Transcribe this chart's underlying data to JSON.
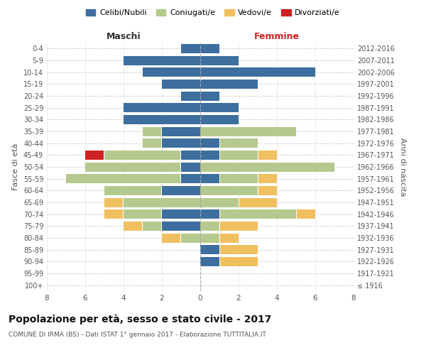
{
  "age_groups": [
    "100+",
    "95-99",
    "90-94",
    "85-89",
    "80-84",
    "75-79",
    "70-74",
    "65-69",
    "60-64",
    "55-59",
    "50-54",
    "45-49",
    "40-44",
    "35-39",
    "30-34",
    "25-29",
    "20-24",
    "15-19",
    "10-14",
    "5-9",
    "0-4"
  ],
  "birth_years": [
    "≤ 1916",
    "1917-1921",
    "1922-1926",
    "1927-1931",
    "1932-1936",
    "1937-1941",
    "1942-1946",
    "1947-1951",
    "1952-1956",
    "1957-1961",
    "1962-1966",
    "1967-1971",
    "1972-1976",
    "1977-1981",
    "1982-1986",
    "1987-1991",
    "1992-1996",
    "1997-2001",
    "2002-2006",
    "2007-2011",
    "2012-2016"
  ],
  "maschi": {
    "celibi": [
      0,
      0,
      0,
      0,
      0,
      2,
      2,
      0,
      2,
      1,
      1,
      1,
      2,
      2,
      4,
      4,
      1,
      2,
      3,
      4,
      1
    ],
    "coniugati": [
      0,
      0,
      0,
      0,
      1,
      1,
      2,
      4,
      3,
      6,
      5,
      4,
      1,
      1,
      0,
      0,
      0,
      0,
      0,
      0,
      0
    ],
    "vedovi": [
      0,
      0,
      0,
      0,
      1,
      1,
      1,
      1,
      0,
      0,
      0,
      0,
      0,
      0,
      0,
      0,
      0,
      0,
      0,
      0,
      0
    ],
    "divorziati": [
      0,
      0,
      0,
      0,
      0,
      0,
      0,
      0,
      0,
      0,
      0,
      1,
      0,
      0,
      0,
      0,
      0,
      0,
      0,
      0,
      0
    ]
  },
  "femmine": {
    "nubili": [
      0,
      0,
      1,
      1,
      0,
      0,
      1,
      0,
      0,
      1,
      0,
      1,
      1,
      0,
      2,
      2,
      1,
      3,
      6,
      2,
      1
    ],
    "coniugate": [
      0,
      0,
      0,
      0,
      1,
      1,
      4,
      2,
      3,
      2,
      7,
      2,
      2,
      5,
      0,
      0,
      0,
      0,
      0,
      0,
      0
    ],
    "vedove": [
      0,
      0,
      2,
      2,
      1,
      2,
      1,
      2,
      1,
      1,
      0,
      1,
      0,
      0,
      0,
      0,
      0,
      0,
      0,
      0,
      0
    ],
    "divorziate": [
      0,
      0,
      0,
      0,
      0,
      0,
      0,
      0,
      0,
      0,
      0,
      0,
      0,
      0,
      0,
      0,
      0,
      0,
      0,
      0,
      0
    ]
  },
  "colors": {
    "celibi_nubili": "#3d6e9e",
    "coniugati": "#b5c98e",
    "vedovi": "#f0c060",
    "divorziati": "#cc2222"
  },
  "title": "Popolazione per età, sesso e stato civile - 2017",
  "subtitle1": "COMUNE DI IRMA (BS) - Dati ISTAT 1° gennaio 2017 - Elaborazione TUTTITALIA.IT",
  "xlabel_left": "Maschi",
  "xlabel_right": "Femmine",
  "ylabel_left": "Fasce di età",
  "ylabel_right": "Anni di nascita",
  "xlim": 8,
  "legend_labels": [
    "Celibi/Nubili",
    "Coniugati/e",
    "Vedovi/e",
    "Divorziati/e"
  ],
  "background_color": "#ffffff"
}
